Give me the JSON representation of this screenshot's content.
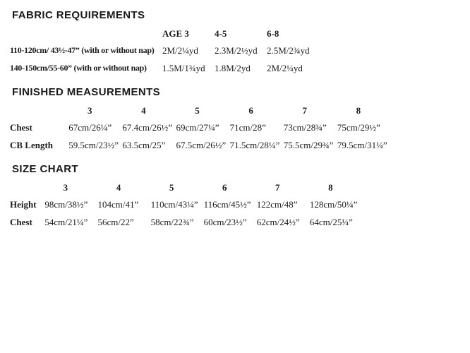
{
  "page": {
    "background": "#ffffff",
    "text_color": "#1b1b1b"
  },
  "fabric_requirements": {
    "title": "FABRIC REQUIREMENTS",
    "columns": [
      "AGE 3",
      "4-5",
      "6-8"
    ],
    "rows": [
      {
        "label": "110-120cm/ 43½-47” (with or without nap)",
        "values": [
          "2M/2¼yd",
          "2.3M/2½yd",
          "2.5M/2¾yd"
        ]
      },
      {
        "label": "140-150cm/55-60” (with or without nap)",
        "values": [
          "1.5M/1¾yd",
          "1.8M/2yd",
          "2M/2¼yd"
        ]
      }
    ]
  },
  "finished_measurements": {
    "title": "FINISHED MEASUREMENTS",
    "columns": [
      "3",
      "4",
      "5",
      "6",
      "7",
      "8"
    ],
    "rows": [
      {
        "label": "Chest",
        "values": [
          "67cm/26¼”",
          "67.4cm/26½”",
          "69cm/27¼”",
          "71cm/28”",
          "73cm/28¾”",
          "75cm/29½”"
        ]
      },
      {
        "label": "CB Length",
        "values": [
          "59.5cm/23½”",
          "63.5cm/25”",
          "67.5cm/26½”",
          "71.5cm/28¼”",
          "75.5cm/29¾”",
          "79.5cm/31¼”"
        ]
      }
    ]
  },
  "size_chart": {
    "title": "SIZE CHART",
    "columns": [
      "3",
      "4",
      "5",
      "6",
      "7",
      "8"
    ],
    "rows": [
      {
        "label": "Height",
        "values": [
          "98cm/38½”",
          "104cm/41”",
          "110cm/43¼”",
          "116cm/45½”",
          "122cm/48”",
          "128cm/50¼”"
        ]
      },
      {
        "label": "Chest",
        "values": [
          "54cm/21¼”",
          "56cm/22”",
          "58cm/22¾”",
          "60cm/23½”",
          "62cm/24½”",
          "64cm/25¼”"
        ]
      }
    ]
  }
}
